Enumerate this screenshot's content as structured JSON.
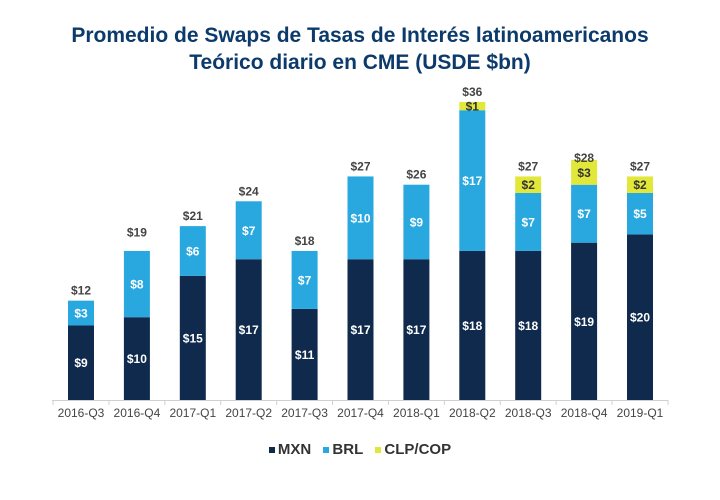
{
  "chart_data": {
    "type": "bar",
    "stacked": true,
    "title": "Promedio de Swaps de Tasas de Interés latinoamericanos",
    "subtitle": "Teórico diario en CME (USDE $bn)",
    "xlabel": "",
    "ylabel": "",
    "ylim": [
      0,
      36
    ],
    "grid": false,
    "legend_position": "bottom",
    "categories": [
      "2016-Q3",
      "2016-Q4",
      "2017-Q1",
      "2017-Q2",
      "2017-Q3",
      "2017-Q4",
      "2018-Q1",
      "2018-Q2",
      "2018-Q3",
      "2018-Q4",
      "2019-Q1"
    ],
    "series": [
      {
        "name": "MXN",
        "color": "#0f2a4d",
        "values": [
          9,
          10,
          15,
          17,
          11,
          17,
          17,
          18,
          18,
          19,
          20
        ],
        "labels": [
          "$9",
          "$10",
          "$15",
          "$17",
          "$11",
          "$17",
          "$17",
          "$18",
          "$18",
          "$19",
          "$20"
        ]
      },
      {
        "name": "BRL",
        "color": "#29a8e0",
        "values": [
          3,
          8,
          6,
          7,
          7,
          10,
          9,
          17,
          7,
          7,
          5
        ],
        "labels": [
          "$3",
          "$8",
          "$6",
          "$7",
          "$7",
          "$10",
          "$9",
          "$17",
          "$7",
          "$7",
          "$5"
        ]
      },
      {
        "name": "CLP/COP",
        "color": "#e2e83a",
        "values": [
          0,
          0,
          0,
          0,
          0,
          0,
          0,
          1,
          2,
          3,
          2
        ],
        "labels": [
          "",
          "",
          "",
          "",
          "",
          "",
          "",
          "$1",
          "$2",
          "$3",
          "$2"
        ]
      }
    ],
    "totals": [
      12,
      19,
      21,
      24,
      18,
      27,
      26,
      36,
      27,
      28,
      27
    ],
    "total_labels": [
      "$12",
      "$19",
      "$21",
      "$24",
      "$18",
      "$27",
      "$26",
      "$36",
      "$27",
      "$28",
      "$27"
    ]
  },
  "legend": [
    {
      "label": "MXN",
      "color": "#0f2a4d"
    },
    {
      "label": "BRL",
      "color": "#29a8e0"
    },
    {
      "label": "CLP/COP",
      "color": "#e2e83a"
    }
  ]
}
